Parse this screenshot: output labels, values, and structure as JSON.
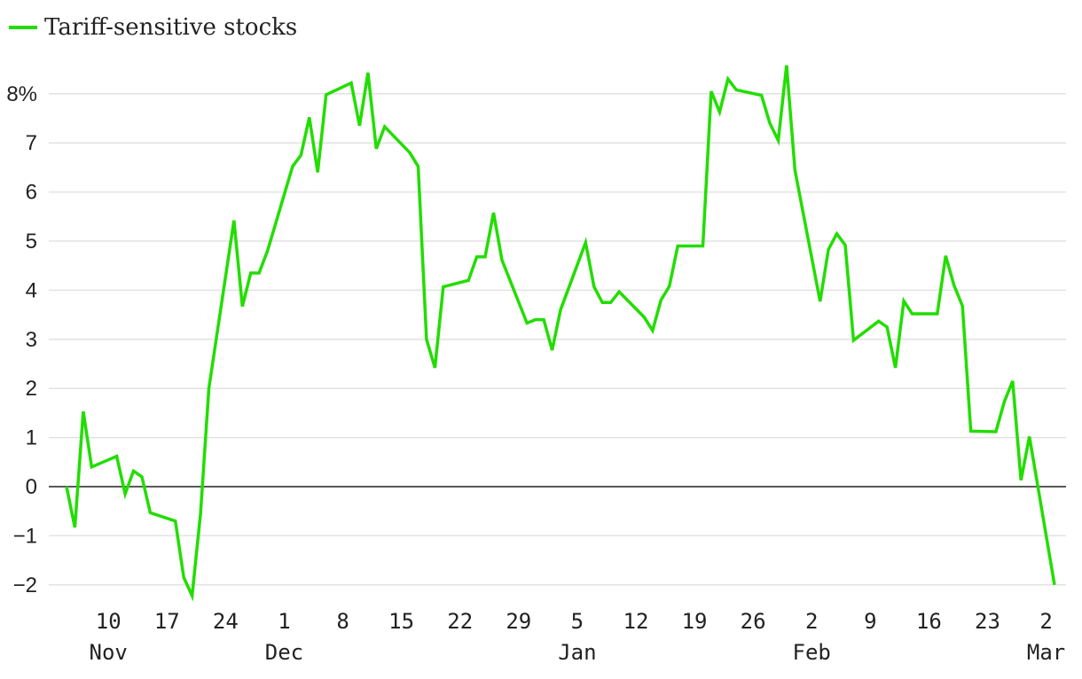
{
  "chart_data": {
    "type": "line",
    "title": "",
    "xlabel": "",
    "ylabel": "",
    "legend": {
      "placement": "top-left"
    },
    "grid": true,
    "ylim": [
      -2.2,
      8.7
    ],
    "y_ticks": [
      -2,
      -1,
      0,
      1,
      2,
      3,
      4,
      5,
      6,
      7,
      8
    ],
    "y_tick_labels": [
      "−2",
      "−1",
      "0",
      "1",
      "2",
      "3",
      "4",
      "5",
      "6",
      "7",
      "8%"
    ],
    "xlim": [
      "2024-11-05",
      "2025-03-03"
    ],
    "x_ticks": [
      {
        "date": "2024-11-10",
        "day": "10",
        "month": "Nov"
      },
      {
        "date": "2024-11-17",
        "day": "17",
        "month": ""
      },
      {
        "date": "2024-11-24",
        "day": "24",
        "month": ""
      },
      {
        "date": "2024-12-01",
        "day": "1",
        "month": "Dec"
      },
      {
        "date": "2024-12-08",
        "day": "8",
        "month": ""
      },
      {
        "date": "2024-12-15",
        "day": "15",
        "month": ""
      },
      {
        "date": "2024-12-22",
        "day": "22",
        "month": ""
      },
      {
        "date": "2024-12-29",
        "day": "29",
        "month": ""
      },
      {
        "date": "2025-01-05",
        "day": "5",
        "month": "Jan"
      },
      {
        "date": "2025-01-12",
        "day": "12",
        "month": ""
      },
      {
        "date": "2025-01-19",
        "day": "19",
        "month": ""
      },
      {
        "date": "2025-01-26",
        "day": "26",
        "month": ""
      },
      {
        "date": "2025-02-02",
        "day": "2",
        "month": "Feb"
      },
      {
        "date": "2025-02-09",
        "day": "9",
        "month": ""
      },
      {
        "date": "2025-02-16",
        "day": "16",
        "month": ""
      },
      {
        "date": "2025-02-23",
        "day": "23",
        "month": ""
      },
      {
        "date": "2025-03-02",
        "day": "2",
        "month": "Mar"
      }
    ],
    "series": [
      {
        "name": "Tariff-sensitive stocks",
        "color": "#22dd00",
        "points": [
          [
            "2024-11-05",
            0.0
          ],
          [
            "2024-11-06",
            -0.83
          ],
          [
            "2024-11-07",
            1.53
          ],
          [
            "2024-11-08",
            0.4
          ],
          [
            "2024-11-11",
            0.62
          ],
          [
            "2024-11-12",
            -0.15
          ],
          [
            "2024-11-13",
            0.32
          ],
          [
            "2024-11-14",
            0.2
          ],
          [
            "2024-11-15",
            -0.53
          ],
          [
            "2024-11-18",
            -0.7
          ],
          [
            "2024-11-19",
            -1.85
          ],
          [
            "2024-11-20",
            -2.22
          ],
          [
            "2024-11-21",
            -0.55
          ],
          [
            "2024-11-22",
            2.0
          ],
          [
            "2024-11-25",
            5.42
          ],
          [
            "2024-11-26",
            3.67
          ],
          [
            "2024-11-27",
            4.35
          ],
          [
            "2024-11-28",
            4.35
          ],
          [
            "2024-11-29",
            4.8
          ],
          [
            "2024-12-02",
            6.52
          ],
          [
            "2024-12-03",
            6.75
          ],
          [
            "2024-12-04",
            7.52
          ],
          [
            "2024-12-05",
            6.4
          ],
          [
            "2024-12-06",
            7.98
          ],
          [
            "2024-12-09",
            8.22
          ],
          [
            "2024-12-10",
            7.35
          ],
          [
            "2024-12-11",
            8.43
          ],
          [
            "2024-12-12",
            6.88
          ],
          [
            "2024-12-13",
            7.33
          ],
          [
            "2024-12-16",
            6.8
          ],
          [
            "2024-12-17",
            6.52
          ],
          [
            "2024-12-18",
            3.0
          ],
          [
            "2024-12-19",
            2.42
          ],
          [
            "2024-12-20",
            4.07
          ],
          [
            "2024-12-23",
            4.2
          ],
          [
            "2024-12-24",
            4.68
          ],
          [
            "2024-12-25",
            4.68
          ],
          [
            "2024-12-26",
            5.58
          ],
          [
            "2024-12-27",
            4.62
          ],
          [
            "2024-12-30",
            3.33
          ],
          [
            "2024-12-31",
            3.4
          ],
          [
            "2025-01-01",
            3.4
          ],
          [
            "2025-01-02",
            2.78
          ],
          [
            "2025-01-03",
            3.6
          ],
          [
            "2025-01-06",
            4.97
          ],
          [
            "2025-01-07",
            4.07
          ],
          [
            "2025-01-08",
            3.75
          ],
          [
            "2025-01-09",
            3.75
          ],
          [
            "2025-01-10",
            3.97
          ],
          [
            "2025-01-13",
            3.45
          ],
          [
            "2025-01-14",
            3.18
          ],
          [
            "2025-01-15",
            3.8
          ],
          [
            "2025-01-16",
            4.08
          ],
          [
            "2025-01-17",
            4.9
          ],
          [
            "2025-01-20",
            4.9
          ],
          [
            "2025-01-21",
            8.05
          ],
          [
            "2025-01-22",
            7.63
          ],
          [
            "2025-01-23",
            8.3
          ],
          [
            "2025-01-24",
            8.08
          ],
          [
            "2025-01-27",
            7.97
          ],
          [
            "2025-01-28",
            7.4
          ],
          [
            "2025-01-29",
            7.05
          ],
          [
            "2025-01-30",
            8.58
          ],
          [
            "2025-01-31",
            6.45
          ],
          [
            "2025-02-03",
            3.77
          ],
          [
            "2025-02-04",
            4.83
          ],
          [
            "2025-02-05",
            5.15
          ],
          [
            "2025-02-06",
            4.92
          ],
          [
            "2025-02-07",
            2.98
          ],
          [
            "2025-02-10",
            3.37
          ],
          [
            "2025-02-11",
            3.25
          ],
          [
            "2025-02-12",
            2.42
          ],
          [
            "2025-02-13",
            3.78
          ],
          [
            "2025-02-14",
            3.52
          ],
          [
            "2025-02-17",
            3.52
          ],
          [
            "2025-02-18",
            4.7
          ],
          [
            "2025-02-19",
            4.1
          ],
          [
            "2025-02-20",
            3.68
          ],
          [
            "2025-02-21",
            1.13
          ],
          [
            "2025-02-24",
            1.12
          ],
          [
            "2025-02-25",
            1.73
          ],
          [
            "2025-02-26",
            2.15
          ],
          [
            "2025-02-27",
            0.13
          ],
          [
            "2025-02-28",
            1.02
          ],
          [
            "2025-03-03",
            -2.0
          ]
        ]
      }
    ]
  }
}
